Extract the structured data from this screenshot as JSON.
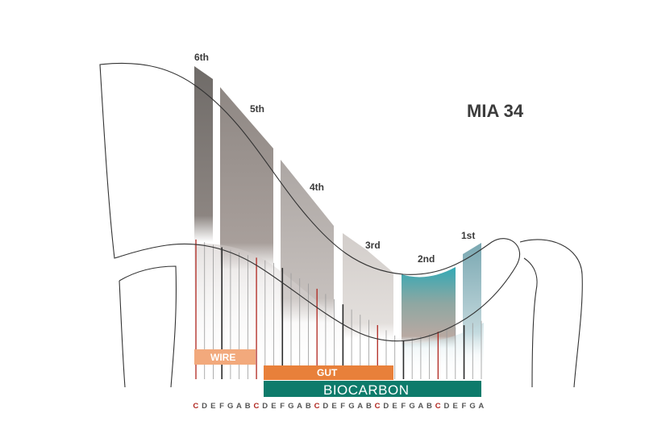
{
  "title": "MIA 34",
  "octaves": [
    {
      "label": "6th",
      "color_top": "#6e6a67",
      "color_bottom": "#8a8380"
    },
    {
      "label": "5th",
      "color_top": "#8d8683",
      "color_bottom": "#a79e9a"
    },
    {
      "label": "4th",
      "color_top": "#aaa4a1",
      "color_bottom": "#c9c3c0"
    },
    {
      "label": "3rd",
      "color_top": "#cfcac7",
      "color_bottom": "#e2dedb"
    },
    {
      "label": "2nd",
      "color_top": "#3aa6b2",
      "color_bottom": "#8fb6b8"
    },
    {
      "label": "1st",
      "color_top": "#7fa9b3",
      "color_bottom": "#b9cfd4"
    }
  ],
  "string_materials": [
    {
      "label": "WIRE",
      "color": "#f0a97a"
    },
    {
      "label": "GUT",
      "color": "#e8803a"
    },
    {
      "label": "BIOCARBON",
      "color": "#0e7b6b"
    }
  ],
  "notes": [
    "C",
    "D",
    "E",
    "F",
    "G",
    "A",
    "B",
    "C",
    "D",
    "E",
    "F",
    "G",
    "A",
    "B",
    "C",
    "D",
    "E",
    "F",
    "G",
    "A",
    "B",
    "C",
    "D",
    "E",
    "F",
    "G",
    "A",
    "B",
    "C",
    "D",
    "E",
    "F",
    "G",
    "A"
  ],
  "colors": {
    "c_string": "#b0261f",
    "normal_string": "#2b2b2b",
    "light_string": "#9a9a9a",
    "outline": "#333333"
  }
}
